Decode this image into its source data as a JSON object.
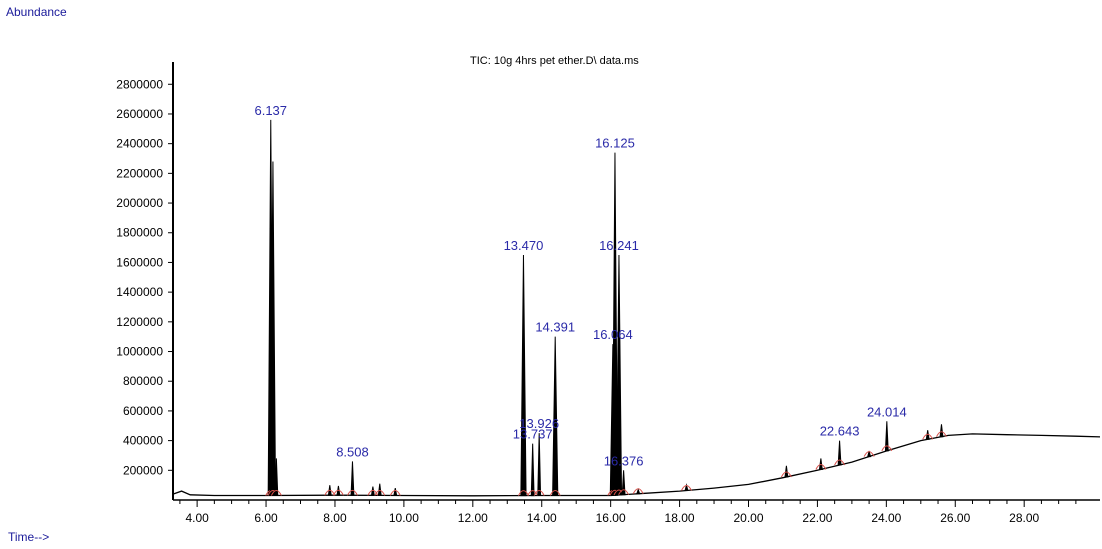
{
  "chart_data": {
    "type": "line",
    "title": "TIC: 10g 4hrs pet ether.D\\ data.ms",
    "ylabel": "Abundance",
    "xlabel": "Time-->",
    "xlim": [
      3.3,
      30.2
    ],
    "ylim": [
      0,
      2950000
    ],
    "x_ticks": [
      4,
      6,
      8,
      10,
      12,
      14,
      16,
      18,
      20,
      22,
      24,
      26,
      28
    ],
    "x_tick_labels": [
      "4.00",
      "6.00",
      "8.00",
      "10.00",
      "12.00",
      "14.00",
      "16.00",
      "18.00",
      "20.00",
      "22.00",
      "24.00",
      "26.00",
      "28.00"
    ],
    "y_ticks": [
      200000,
      400000,
      600000,
      800000,
      1000000,
      1200000,
      1400000,
      1600000,
      1800000,
      2000000,
      2200000,
      2400000,
      2600000,
      2800000
    ],
    "y_tick_labels": [
      "200000",
      "400000",
      "600000",
      "800000",
      "1000000",
      "1200000",
      "1400000",
      "1600000",
      "1800000",
      "2000000",
      "2200000",
      "2400000",
      "2600000",
      "2800000"
    ],
    "baseline": [
      [
        3.3,
        40000
      ],
      [
        3.55,
        60000
      ],
      [
        3.8,
        35000
      ],
      [
        4.5,
        30000
      ],
      [
        6.0,
        30000
      ],
      [
        8.0,
        32000
      ],
      [
        10.0,
        30000
      ],
      [
        12.0,
        28000
      ],
      [
        14.0,
        30000
      ],
      [
        16.0,
        30000
      ],
      [
        17.0,
        45000
      ],
      [
        18.0,
        60000
      ],
      [
        19.0,
        80000
      ],
      [
        20.0,
        105000
      ],
      [
        21.0,
        150000
      ],
      [
        22.0,
        200000
      ],
      [
        23.0,
        255000
      ],
      [
        24.0,
        330000
      ],
      [
        25.0,
        400000
      ],
      [
        25.8,
        435000
      ],
      [
        26.5,
        445000
      ],
      [
        27.5,
        440000
      ],
      [
        28.5,
        435000
      ],
      [
        29.5,
        430000
      ],
      [
        30.2,
        425000
      ]
    ],
    "peaks": [
      {
        "rt": 6.137,
        "label": "6.137",
        "height": 2560000
      },
      {
        "rt": 6.2,
        "label": "",
        "height": 2280000
      },
      {
        "rt": 6.3,
        "label": "",
        "height": 280000
      },
      {
        "rt": 7.85,
        "label": "",
        "height": 100000
      },
      {
        "rt": 8.1,
        "label": "",
        "height": 95000
      },
      {
        "rt": 8.508,
        "label": "8.508",
        "height": 260000
      },
      {
        "rt": 9.1,
        "label": "",
        "height": 90000
      },
      {
        "rt": 9.3,
        "label": "",
        "height": 110000
      },
      {
        "rt": 9.75,
        "label": "",
        "height": 80000
      },
      {
        "rt": 13.47,
        "label": "13.470",
        "height": 1650000
      },
      {
        "rt": 13.737,
        "label": "13.737",
        "height": 380000
      },
      {
        "rt": 13.926,
        "label": "13.926",
        "height": 450000
      },
      {
        "rt": 14.391,
        "label": "14.391",
        "height": 1100000
      },
      {
        "rt": 16.064,
        "label": "16.064",
        "height": 1050000
      },
      {
        "rt": 16.125,
        "label": "16.125",
        "height": 2340000
      },
      {
        "rt": 16.241,
        "label": "16.241",
        "height": 1650000
      },
      {
        "rt": 16.376,
        "label": "16.376",
        "height": 200000
      },
      {
        "rt": 16.8,
        "label": "",
        "height": 70000
      },
      {
        "rt": 18.2,
        "label": "",
        "height": 100000
      },
      {
        "rt": 21.1,
        "label": "",
        "height": 230000
      },
      {
        "rt": 22.1,
        "label": "",
        "height": 280000
      },
      {
        "rt": 22.643,
        "label": "22.643",
        "height": 400000
      },
      {
        "rt": 23.5,
        "label": "",
        "height": 330000
      },
      {
        "rt": 24.014,
        "label": "24.014",
        "height": 530000
      },
      {
        "rt": 25.2,
        "label": "",
        "height": 470000
      },
      {
        "rt": 25.6,
        "label": "",
        "height": 510000
      }
    ],
    "grid": false,
    "legend": "none",
    "colors": {
      "trace": "#000000",
      "labels": "#2a2aa8",
      "integration": "#d8504a"
    }
  }
}
